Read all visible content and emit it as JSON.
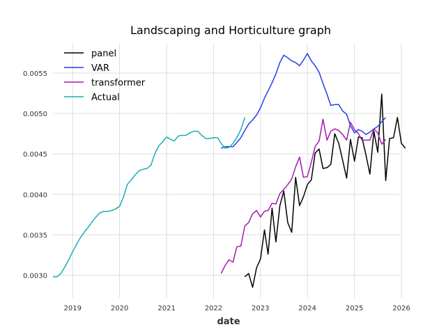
{
  "chart_data": {
    "type": "line",
    "title": "Landscaping and Horticulture graph",
    "xlabel": "date",
    "ylabel": "",
    "xlim": [
      "2018-08-01",
      "2026-01-01"
    ],
    "ylim": [
      0.00272,
      0.00587
    ],
    "grid": true,
    "legend_position": "top-left",
    "x_ticks": [
      {
        "date": "2019-01-01",
        "label": "2019"
      },
      {
        "date": "2020-01-01",
        "label": "2020"
      },
      {
        "date": "2021-01-01",
        "label": "2021"
      },
      {
        "date": "2022-01-01",
        "label": "2022"
      },
      {
        "date": "2023-01-01",
        "label": "2023"
      },
      {
        "date": "2024-01-01",
        "label": "2024"
      },
      {
        "date": "2025-01-01",
        "label": "2025"
      },
      {
        "date": "2026-01-01",
        "label": "2026"
      }
    ],
    "y_ticks": [
      {
        "value": 0.003,
        "label": "0.0030"
      },
      {
        "value": 0.0035,
        "label": "0.0035"
      },
      {
        "value": 0.004,
        "label": "0.0040"
      },
      {
        "value": 0.0045,
        "label": "0.0045"
      },
      {
        "value": 0.005,
        "label": "0.0050"
      },
      {
        "value": 0.0055,
        "label": "0.0055"
      }
    ],
    "series": [
      {
        "name": "panel",
        "color": "#000000",
        "points": [
          [
            "2022-09-01",
            0.00298
          ],
          [
            "2022-10-01",
            0.00302
          ],
          [
            "2022-11-01",
            0.00285
          ],
          [
            "2022-12-01",
            0.00309
          ],
          [
            "2023-01-01",
            0.0032
          ],
          [
            "2023-02-01",
            0.00356
          ],
          [
            "2023-03-01",
            0.00326
          ],
          [
            "2023-04-01",
            0.00383
          ],
          [
            "2023-05-01",
            0.00341
          ],
          [
            "2023-06-01",
            0.00386
          ],
          [
            "2023-07-01",
            0.00404
          ],
          [
            "2023-08-01",
            0.00365
          ],
          [
            "2023-09-01",
            0.00353
          ],
          [
            "2023-10-01",
            0.00421
          ],
          [
            "2023-11-01",
            0.00386
          ],
          [
            "2023-12-01",
            0.00397
          ],
          [
            "2024-01-01",
            0.00412
          ],
          [
            "2024-02-01",
            0.00418
          ],
          [
            "2024-03-01",
            0.00451
          ],
          [
            "2024-04-01",
            0.00456
          ],
          [
            "2024-05-01",
            0.00432
          ],
          [
            "2024-06-01",
            0.00433
          ],
          [
            "2024-07-01",
            0.00437
          ],
          [
            "2024-08-01",
            0.00475
          ],
          [
            "2024-09-01",
            0.00463
          ],
          [
            "2024-10-01",
            0.00442
          ],
          [
            "2024-11-01",
            0.0042
          ],
          [
            "2024-12-01",
            0.00468
          ],
          [
            "2025-01-01",
            0.00441
          ],
          [
            "2025-02-01",
            0.00471
          ],
          [
            "2025-03-01",
            0.0047
          ],
          [
            "2025-04-01",
            0.00448
          ],
          [
            "2025-05-01",
            0.00425
          ],
          [
            "2025-06-01",
            0.00478
          ],
          [
            "2025-07-01",
            0.00452
          ],
          [
            "2025-08-01",
            0.00524
          ],
          [
            "2025-09-01",
            0.00417
          ],
          [
            "2025-10-01",
            0.00469
          ],
          [
            "2025-11-01",
            0.0047
          ],
          [
            "2025-12-01",
            0.00495
          ],
          [
            "2026-01-01",
            0.00463
          ],
          [
            "2026-02-01",
            0.00457
          ]
        ]
      },
      {
        "name": "VAR",
        "color": "#1f3fe8",
        "points": [
          [
            "2022-03-01",
            0.00457
          ],
          [
            "2022-04-01",
            0.00459
          ],
          [
            "2022-05-01",
            0.00459
          ],
          [
            "2022-06-01",
            0.00459
          ],
          [
            "2022-07-01",
            0.00464
          ],
          [
            "2022-08-01",
            0.0047
          ],
          [
            "2022-09-01",
            0.00479
          ],
          [
            "2022-10-01",
            0.00487
          ],
          [
            "2022-11-01",
            0.00492
          ],
          [
            "2022-12-01",
            0.00498
          ],
          [
            "2023-01-01",
            0.00507
          ],
          [
            "2023-02-01",
            0.00519
          ],
          [
            "2023-03-01",
            0.00528
          ],
          [
            "2023-04-01",
            0.00538
          ],
          [
            "2023-05-01",
            0.00549
          ],
          [
            "2023-06-01",
            0.00563
          ],
          [
            "2023-07-01",
            0.00572
          ],
          [
            "2023-08-01",
            0.00569
          ],
          [
            "2023-09-01",
            0.00565
          ],
          [
            "2023-10-01",
            0.00563
          ],
          [
            "2023-11-01",
            0.00559
          ],
          [
            "2023-12-01",
            0.00566
          ],
          [
            "2024-01-01",
            0.00574
          ],
          [
            "2024-02-01",
            0.00565
          ],
          [
            "2024-03-01",
            0.00559
          ],
          [
            "2024-04-01",
            0.00551
          ],
          [
            "2024-05-01",
            0.00537
          ],
          [
            "2024-06-01",
            0.00524
          ],
          [
            "2024-07-01",
            0.0051
          ],
          [
            "2024-08-01",
            0.00511
          ],
          [
            "2024-09-01",
            0.00511
          ],
          [
            "2024-10-01",
            0.00503
          ],
          [
            "2024-11-01",
            0.00499
          ],
          [
            "2024-12-01",
            0.00485
          ],
          [
            "2025-01-01",
            0.00476
          ],
          [
            "2025-02-01",
            0.0048
          ],
          [
            "2025-03-01",
            0.00478
          ],
          [
            "2025-04-01",
            0.00474
          ],
          [
            "2025-05-01",
            0.00477
          ],
          [
            "2025-06-01",
            0.00481
          ],
          [
            "2025-07-01",
            0.00484
          ],
          [
            "2025-08-01",
            0.0049
          ],
          [
            "2025-09-01",
            0.00495
          ]
        ]
      },
      {
        "name": "transformer",
        "color": "#a31ab0",
        "points": [
          [
            "2022-03-01",
            0.00302
          ],
          [
            "2022-04-01",
            0.00312
          ],
          [
            "2022-05-01",
            0.00319
          ],
          [
            "2022-06-01",
            0.00316
          ],
          [
            "2022-07-01",
            0.00335
          ],
          [
            "2022-08-01",
            0.00336
          ],
          [
            "2022-09-01",
            0.00361
          ],
          [
            "2022-10-01",
            0.00365
          ],
          [
            "2022-11-01",
            0.00376
          ],
          [
            "2022-12-01",
            0.0038
          ],
          [
            "2023-01-01",
            0.00372
          ],
          [
            "2023-02-01",
            0.00379
          ],
          [
            "2023-03-01",
            0.0038
          ],
          [
            "2023-04-01",
            0.00389
          ],
          [
            "2023-05-01",
            0.00388
          ],
          [
            "2023-06-01",
            0.00401
          ],
          [
            "2023-07-01",
            0.00406
          ],
          [
            "2023-08-01",
            0.00412
          ],
          [
            "2023-09-01",
            0.00419
          ],
          [
            "2023-10-01",
            0.00434
          ],
          [
            "2023-11-01",
            0.00446
          ],
          [
            "2023-12-01",
            0.00421
          ],
          [
            "2024-01-01",
            0.00422
          ],
          [
            "2024-02-01",
            0.0044
          ],
          [
            "2024-03-01",
            0.00459
          ],
          [
            "2024-04-01",
            0.00466
          ],
          [
            "2024-05-01",
            0.00493
          ],
          [
            "2024-06-01",
            0.00467
          ],
          [
            "2024-07-01",
            0.00478
          ],
          [
            "2024-08-01",
            0.00481
          ],
          [
            "2024-09-01",
            0.00479
          ],
          [
            "2024-10-01",
            0.00474
          ],
          [
            "2024-11-01",
            0.00467
          ],
          [
            "2024-12-01",
            0.00489
          ],
          [
            "2025-01-01",
            0.0048
          ],
          [
            "2025-02-01",
            0.00475
          ],
          [
            "2025-03-01",
            0.00467
          ],
          [
            "2025-04-01",
            0.00467
          ],
          [
            "2025-05-01",
            0.00467
          ],
          [
            "2025-06-01",
            0.00481
          ],
          [
            "2025-07-01",
            0.00476
          ],
          [
            "2025-08-01",
            0.00462
          ],
          [
            "2025-09-01",
            0.00468
          ]
        ]
      },
      {
        "name": "Actual",
        "color": "#17aeb4",
        "points": [
          [
            "2018-08-01",
            0.00298
          ],
          [
            "2018-09-01",
            0.00298
          ],
          [
            "2018-10-01",
            0.00302
          ],
          [
            "2018-11-01",
            0.0031
          ],
          [
            "2018-12-01",
            0.00319
          ],
          [
            "2019-01-01",
            0.00329
          ],
          [
            "2019-02-01",
            0.00338
          ],
          [
            "2019-03-01",
            0.00346
          ],
          [
            "2019-04-01",
            0.00353
          ],
          [
            "2019-05-01",
            0.00359
          ],
          [
            "2019-06-01",
            0.00366
          ],
          [
            "2019-07-01",
            0.00372
          ],
          [
            "2019-08-01",
            0.00377
          ],
          [
            "2019-09-01",
            0.00379
          ],
          [
            "2019-10-01",
            0.00379
          ],
          [
            "2019-11-01",
            0.0038
          ],
          [
            "2019-12-01",
            0.00382
          ],
          [
            "2020-01-01",
            0.00385
          ],
          [
            "2020-02-01",
            0.00397
          ],
          [
            "2020-03-01",
            0.00412
          ],
          [
            "2020-04-01",
            0.00418
          ],
          [
            "2020-05-01",
            0.00424
          ],
          [
            "2020-06-01",
            0.00429
          ],
          [
            "2020-07-01",
            0.00431
          ],
          [
            "2020-08-01",
            0.00432
          ],
          [
            "2020-09-01",
            0.00436
          ],
          [
            "2020-10-01",
            0.0045
          ],
          [
            "2020-11-01",
            0.0046
          ],
          [
            "2020-12-01",
            0.00465
          ],
          [
            "2021-01-01",
            0.00471
          ],
          [
            "2021-02-01",
            0.00468
          ],
          [
            "2021-03-01",
            0.00466
          ],
          [
            "2021-04-01",
            0.00472
          ],
          [
            "2021-05-01",
            0.00473
          ],
          [
            "2021-06-01",
            0.00473
          ],
          [
            "2021-07-01",
            0.00476
          ],
          [
            "2021-08-01",
            0.00478
          ],
          [
            "2021-09-01",
            0.00478
          ],
          [
            "2021-10-01",
            0.00473
          ],
          [
            "2021-11-01",
            0.00469
          ],
          [
            "2021-12-01",
            0.00469
          ],
          [
            "2022-01-01",
            0.0047
          ],
          [
            "2022-02-01",
            0.0047
          ],
          [
            "2022-03-01",
            0.00463
          ],
          [
            "2022-04-01",
            0.00457
          ],
          [
            "2022-05-01",
            0.00458
          ],
          [
            "2022-06-01",
            0.00463
          ],
          [
            "2022-07-01",
            0.0047
          ],
          [
            "2022-08-01",
            0.0048
          ],
          [
            "2022-09-01",
            0.00495
          ]
        ]
      }
    ]
  }
}
